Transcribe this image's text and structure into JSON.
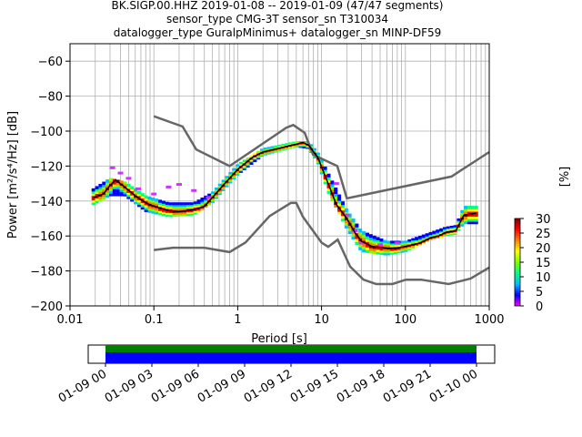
{
  "chart_data": {
    "type": "heatmap",
    "title_lines": [
      "BK.SIGP.00.HHZ   2019-01-08 -- 2019-01-09  (47/47 segments)",
      "sensor_type CMG-3T sensor_sn T310034",
      "datalogger_type GuralpMinimus+ datalogger_sn MINP-DF59"
    ],
    "xlabel": "Period [s]",
    "ylabel": "Power [m²/s⁴/Hz] [dB]",
    "x_scale": "log",
    "xlim": [
      0.01,
      1000
    ],
    "ylim": [
      -200,
      -50
    ],
    "x_ticks": [
      {
        "value": 0.01,
        "label": "0.01"
      },
      {
        "value": 0.1,
        "label": "0.1"
      },
      {
        "value": 1,
        "label": "1"
      },
      {
        "value": 10,
        "label": "10"
      },
      {
        "value": 100,
        "label": "100"
      },
      {
        "value": 1000,
        "label": "1000"
      }
    ],
    "y_ticks": [
      {
        "value": -60,
        "label": "−60"
      },
      {
        "value": -80,
        "label": "−80"
      },
      {
        "value": -100,
        "label": "−100"
      },
      {
        "value": -120,
        "label": "−120"
      },
      {
        "value": -140,
        "label": "−140"
      },
      {
        "value": -160,
        "label": "−160"
      },
      {
        "value": -180,
        "label": "−180"
      },
      {
        "value": -200,
        "label": "−200"
      }
    ],
    "grid": true,
    "colorbar": {
      "label": "[%]",
      "range": [
        0,
        30
      ],
      "ticks": [
        {
          "value": 0,
          "label": "0"
        },
        {
          "value": 5,
          "label": "5"
        },
        {
          "value": 10,
          "label": "10"
        },
        {
          "value": 15,
          "label": "15"
        },
        {
          "value": 20,
          "label": "20"
        },
        {
          "value": 25,
          "label": "25"
        },
        {
          "value": 30,
          "label": "30"
        }
      ]
    },
    "nhnm": [
      [
        0.1,
        -91.5
      ],
      [
        0.22,
        -97.4
      ],
      [
        0.32,
        -110.5
      ],
      [
        0.8,
        -120
      ],
      [
        3.8,
        -98
      ],
      [
        4.6,
        -96.5
      ],
      [
        6.3,
        -101
      ],
      [
        7.9,
        -113.5
      ],
      [
        15.4,
        -120
      ],
      [
        20,
        -138.5
      ],
      [
        354.8,
        -126
      ],
      [
        1000,
        -112
      ]
    ],
    "nlnm": [
      [
        0.1,
        -168
      ],
      [
        0.17,
        -166.7
      ],
      [
        0.4,
        -166.7
      ],
      [
        0.8,
        -169.2
      ],
      [
        1.24,
        -163.7
      ],
      [
        2.4,
        -148.6
      ],
      [
        4.3,
        -141.1
      ],
      [
        5,
        -141.1
      ],
      [
        6,
        -149
      ],
      [
        10,
        -163.8
      ],
      [
        12,
        -166.2
      ],
      [
        15.6,
        -162.1
      ],
      [
        21.9,
        -177.5
      ],
      [
        31.6,
        -185
      ],
      [
        45,
        -187.5
      ],
      [
        70,
        -187.5
      ],
      [
        101,
        -185
      ],
      [
        154,
        -185
      ],
      [
        328,
        -187.5
      ],
      [
        600,
        -184.4
      ],
      [
        1000,
        -178
      ]
    ],
    "median": [
      [
        0.019,
        -138
      ],
      [
        0.025,
        -136
      ],
      [
        0.03,
        -131
      ],
      [
        0.035,
        -128
      ],
      [
        0.045,
        -132
      ],
      [
        0.06,
        -137
      ],
      [
        0.08,
        -141
      ],
      [
        0.1,
        -143
      ],
      [
        0.15,
        -145.5
      ],
      [
        0.2,
        -146
      ],
      [
        0.3,
        -145
      ],
      [
        0.4,
        -143
      ],
      [
        0.5,
        -138
      ],
      [
        0.7,
        -130
      ],
      [
        1,
        -122
      ],
      [
        1.5,
        -115
      ],
      [
        2,
        -112
      ],
      [
        3,
        -110
      ],
      [
        4,
        -108.5
      ],
      [
        5,
        -107.5
      ],
      [
        6,
        -106.5
      ],
      [
        7,
        -108
      ],
      [
        9,
        -115
      ],
      [
        12,
        -130
      ],
      [
        15,
        -142
      ],
      [
        20,
        -150
      ],
      [
        25,
        -158
      ],
      [
        30,
        -163
      ],
      [
        40,
        -166
      ],
      [
        60,
        -167
      ],
      [
        80,
        -167
      ],
      [
        100,
        -166
      ],
      [
        150,
        -164
      ],
      [
        200,
        -161
      ],
      [
        250,
        -160
      ],
      [
        300,
        -158
      ],
      [
        400,
        -157
      ],
      [
        500,
        -148
      ],
      [
        700,
        -147
      ]
    ],
    "pdf_band": [
      [
        0.019,
        -142,
        -133
      ],
      [
        0.03,
        -137,
        -127
      ],
      [
        0.045,
        -137,
        -129
      ],
      [
        0.08,
        -146,
        -137
      ],
      [
        0.15,
        -149,
        -141
      ],
      [
        0.3,
        -148,
        -141
      ],
      [
        0.5,
        -141,
        -135
      ],
      [
        1,
        -125,
        -119
      ],
      [
        2,
        -114,
        -110
      ],
      [
        5,
        -109,
        -106
      ],
      [
        7,
        -110,
        -106
      ],
      [
        9,
        -118,
        -112
      ],
      [
        12,
        -135,
        -124
      ],
      [
        20,
        -156,
        -145
      ],
      [
        30,
        -169,
        -157
      ],
      [
        60,
        -171,
        -163
      ],
      [
        100,
        -169,
        -163
      ],
      [
        200,
        -162,
        -158
      ],
      [
        300,
        -160,
        -155
      ],
      [
        400,
        -159,
        -154
      ],
      [
        500,
        -153,
        -143
      ],
      [
        700,
        -153,
        -143
      ]
    ],
    "pdf_outliers": [
      [
        0.032,
        -121
      ],
      [
        0.04,
        -124
      ],
      [
        0.05,
        -127
      ],
      [
        0.065,
        -133
      ],
      [
        0.1,
        -136
      ],
      [
        0.15,
        -132
      ],
      [
        0.2,
        -130.5
      ],
      [
        0.3,
        -134
      ],
      [
        0.45,
        -138
      ],
      [
        15,
        -130
      ],
      [
        20,
        -148
      ],
      [
        25,
        -157
      ],
      [
        30,
        -164
      ],
      [
        50,
        -165
      ],
      [
        80,
        -164
      ]
    ]
  },
  "coverage_axis": {
    "tick_labels": [
      "01-09 00",
      "01-09 03",
      "01-09 06",
      "01-09 09",
      "01-09 12",
      "01-09 15",
      "01-09 18",
      "01-09 21",
      "01-10 00"
    ],
    "coverage_fraction": 1.0
  },
  "colors": {
    "noise_model": "#666666",
    "median": "#000000",
    "grid": "#b0b0b0",
    "coverage_top": "#008000",
    "coverage_bottom": "#0000ff"
  }
}
